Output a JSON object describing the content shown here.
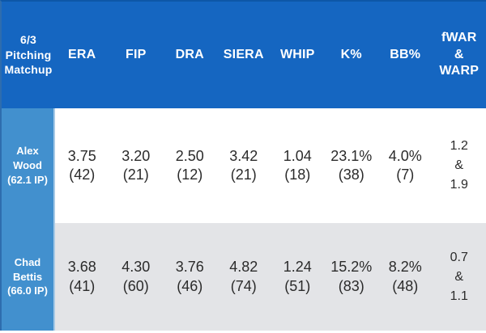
{
  "header": {
    "matchup": "6/3\nPitching\nMatchup",
    "stats": [
      "ERA",
      "FIP",
      "DRA",
      "SIERA",
      "WHIP",
      "K%",
      "BB%"
    ],
    "fwar": "fWAR\n&\nWARP"
  },
  "rows": [
    {
      "pitcher": "Alex\nWood",
      "innings": "(62.1 IP)",
      "stats": [
        {
          "value": "3.75",
          "rank": "(42)"
        },
        {
          "value": "3.20",
          "rank": "(21)"
        },
        {
          "value": "2.50",
          "rank": "(12)"
        },
        {
          "value": "3.42",
          "rank": "(21)"
        },
        {
          "value": "1.04",
          "rank": "(18)"
        },
        {
          "value": "23.1%",
          "rank": "(38)"
        },
        {
          "value": "4.0%",
          "rank": "(7)"
        }
      ],
      "fwar": "1.2\n&\n1.9"
    },
    {
      "pitcher": "Chad\nBettis",
      "innings": "(66.0 IP)",
      "stats": [
        {
          "value": "3.68",
          "rank": "(41)"
        },
        {
          "value": "4.30",
          "rank": "(60)"
        },
        {
          "value": "3.76",
          "rank": "(46)"
        },
        {
          "value": "4.82",
          "rank": "(74)"
        },
        {
          "value": "1.24",
          "rank": "(51)"
        },
        {
          "value": "15.2%",
          "rank": "(83)"
        },
        {
          "value": "8.2%",
          "rank": "(48)"
        }
      ],
      "fwar": "0.7\n&\n1.1"
    }
  ],
  "colors": {
    "header_bg": "#1566C1",
    "header_top_border": "#0D57A7",
    "pitcher_cell_bg": "#4290CE",
    "pitcher_cell_divider": "#A6C9E6",
    "row_bg": "#FFFFFF",
    "row_alt_bg": "#E3E4E7",
    "header_text": "#FFFFFF",
    "value_text": "#2B2B2B"
  },
  "chart_data": {
    "type": "table",
    "title": "6/3 Pitching Matchup",
    "columns": [
      "ERA",
      "FIP",
      "DRA",
      "SIERA",
      "WHIP",
      "K%",
      "BB%",
      "fWAR & WARP"
    ],
    "rows": [
      {
        "pitcher": "Alex Wood (62.1 IP)",
        "values": [
          "3.75 (42)",
          "3.20 (21)",
          "2.50 (12)",
          "3.42 (21)",
          "1.04 (18)",
          "23.1% (38)",
          "4.0% (7)",
          "1.2 & 1.9"
        ]
      },
      {
        "pitcher": "Chad Bettis (66.0 IP)",
        "values": [
          "3.68 (41)",
          "4.30 (60)",
          "3.76 (46)",
          "4.82 (74)",
          "1.24 (51)",
          "15.2% (83)",
          "8.2% (48)",
          "0.7 & 1.1"
        ]
      }
    ]
  }
}
